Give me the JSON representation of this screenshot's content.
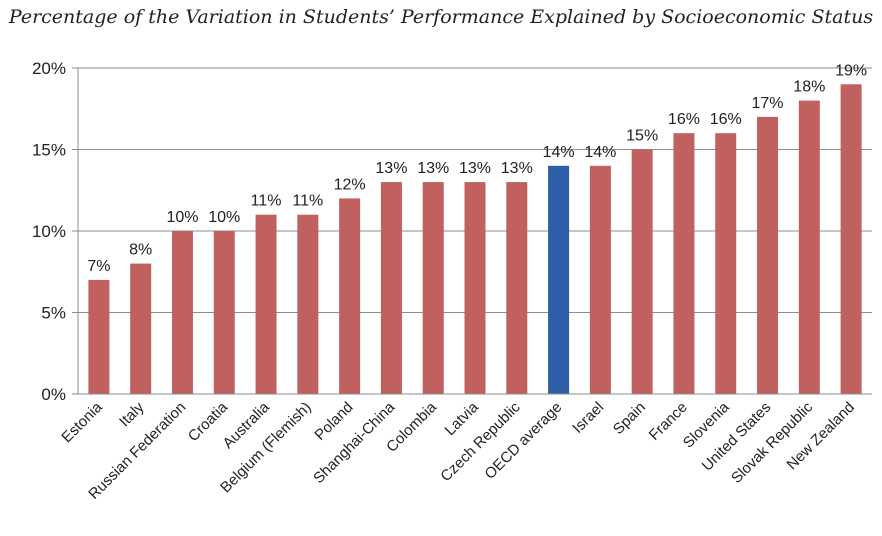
{
  "chart_data": {
    "type": "bar",
    "title": "Percentage of the Variation in Students’ Performance Explained by Socioeconomic Status",
    "xlabel": "",
    "ylabel": "",
    "ylim": [
      0,
      20
    ],
    "yticks": [
      0,
      5,
      10,
      15,
      20
    ],
    "ytick_labels": [
      "0%",
      "5%",
      "10%",
      "15%",
      "20%"
    ],
    "grid": true,
    "categories": [
      "Estonia",
      "Italy",
      "Russian Federation",
      "Croatia",
      "Australia",
      "Belgium (Flemish)",
      "Poland",
      "Shanghai-China",
      "Colombia",
      "Latvia",
      "Czech Republic",
      "OECD average",
      "Israel",
      "Spain",
      "France",
      "Slovenia",
      "United States",
      "Slovak Republic",
      "New Zealand"
    ],
    "values": [
      7,
      8,
      10,
      10,
      11,
      11,
      12,
      13,
      13,
      13,
      13,
      14,
      14,
      15,
      16,
      16,
      17,
      18,
      19
    ],
    "data_labels": [
      "7%",
      "8%",
      "10%",
      "10%",
      "11%",
      "11%",
      "12%",
      "13%",
      "13%",
      "13%",
      "13%",
      "14%",
      "14%",
      "15%",
      "16%",
      "16%",
      "17%",
      "18%",
      "19%"
    ],
    "colors": {
      "bar": "#c0605f",
      "highlight": "#2e5ea8",
      "grid": "#8c8c8c",
      "text": "#222222"
    },
    "highlight_category": "OECD average"
  }
}
